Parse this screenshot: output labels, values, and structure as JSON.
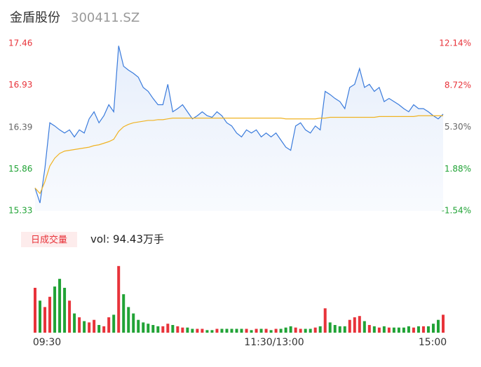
{
  "chart_data": {
    "type": "intraday",
    "title": "金盾股份",
    "subtitle": "300411.SZ",
    "ylim": [
      15.33,
      17.46
    ],
    "yticks": [
      17.46,
      16.93,
      16.39,
      15.86,
      15.33
    ],
    "ytick_colors": [
      "#e8333a",
      "#e8333a",
      "#666666",
      "#21a336",
      "#21a336"
    ],
    "y2lim": [
      -1.54,
      12.14
    ],
    "y2ticks": [
      {
        "value": 12.14,
        "label": "12.14%"
      },
      {
        "value": 8.72,
        "label": "8.72%"
      },
      {
        "value": 5.3,
        "label": "5.30%"
      },
      {
        "value": 1.88,
        "label": "1.88%"
      },
      {
        "value": -1.54,
        "label": "-1.54%"
      }
    ],
    "y2tick_colors": [
      "#e8333a",
      "#e8333a",
      "#666666",
      "#21a336",
      "#21a336"
    ],
    "grid": false,
    "time_labels": [
      "09:30",
      "11:30/13:00",
      "15:00"
    ],
    "series": [
      {
        "name": "price",
        "color": "#3a7bdc",
        "values": [
          15.62,
          15.43,
          15.87,
          16.45,
          16.41,
          16.36,
          16.32,
          16.36,
          16.27,
          16.36,
          16.32,
          16.5,
          16.59,
          16.45,
          16.54,
          16.68,
          16.59,
          17.43,
          17.17,
          17.12,
          17.08,
          17.03,
          16.9,
          16.85,
          16.76,
          16.68,
          16.68,
          16.94,
          16.59,
          16.63,
          16.68,
          16.59,
          16.5,
          16.54,
          16.59,
          16.54,
          16.52,
          16.59,
          16.54,
          16.45,
          16.41,
          16.32,
          16.27,
          16.36,
          16.32,
          16.36,
          16.27,
          16.32,
          16.27,
          16.32,
          16.23,
          16.14,
          16.1,
          16.41,
          16.45,
          16.36,
          16.32,
          16.41,
          16.36,
          16.85,
          16.81,
          16.76,
          16.72,
          16.63,
          16.9,
          16.94,
          17.14,
          16.9,
          16.94,
          16.85,
          16.9,
          16.72,
          16.76,
          16.72,
          16.68,
          16.63,
          16.59,
          16.68,
          16.63,
          16.63,
          16.59,
          16.54,
          16.5,
          16.56
        ]
      },
      {
        "name": "average",
        "color": "#f0b323",
        "values": [
          15.62,
          15.55,
          15.7,
          15.9,
          16.0,
          16.06,
          16.09,
          16.1,
          16.11,
          16.12,
          16.13,
          16.14,
          16.16,
          16.17,
          16.19,
          16.21,
          16.24,
          16.34,
          16.4,
          16.43,
          16.45,
          16.46,
          16.47,
          16.48,
          16.48,
          16.49,
          16.49,
          16.5,
          16.51,
          16.51,
          16.51,
          16.51,
          16.51,
          16.51,
          16.51,
          16.51,
          16.51,
          16.51,
          16.51,
          16.51,
          16.51,
          16.51,
          16.51,
          16.51,
          16.51,
          16.51,
          16.51,
          16.51,
          16.51,
          16.51,
          16.51,
          16.5,
          16.5,
          16.5,
          16.5,
          16.5,
          16.5,
          16.5,
          16.51,
          16.51,
          16.52,
          16.52,
          16.52,
          16.52,
          16.52,
          16.52,
          16.52,
          16.52,
          16.52,
          16.52,
          16.53,
          16.53,
          16.53,
          16.53,
          16.53,
          16.53,
          16.53,
          16.53,
          16.54,
          16.54,
          16.54,
          16.54,
          16.54,
          16.54
        ]
      }
    ],
    "volume_legend": "日成交量",
    "volume_text": "vol: 94.43万手",
    "volume_ylim": [
      0,
      5.3
    ],
    "up_color": "#e8333a",
    "down_color": "#21a336",
    "volume": [
      3.5,
      2.5,
      2.0,
      2.8,
      3.6,
      4.2,
      3.5,
      2.5,
      1.5,
      1.2,
      0.9,
      0.8,
      1.0,
      0.6,
      0.5,
      1.2,
      1.4,
      5.2,
      3.0,
      2.0,
      1.5,
      1.0,
      0.8,
      0.7,
      0.6,
      0.5,
      0.5,
      0.7,
      0.6,
      0.5,
      0.4,
      0.4,
      0.3,
      0.3,
      0.3,
      0.2,
      0.2,
      0.3,
      0.3,
      0.3,
      0.3,
      0.3,
      0.3,
      0.3,
      0.2,
      0.3,
      0.3,
      0.3,
      0.2,
      0.3,
      0.3,
      0.4,
      0.5,
      0.4,
      0.3,
      0.3,
      0.3,
      0.4,
      0.5,
      1.9,
      0.8,
      0.6,
      0.5,
      0.5,
      1.0,
      1.2,
      1.3,
      0.9,
      0.6,
      0.5,
      0.4,
      0.5,
      0.4,
      0.4,
      0.4,
      0.4,
      0.5,
      0.4,
      0.5,
      0.5,
      0.5,
      0.7,
      1.0,
      1.4
    ]
  }
}
